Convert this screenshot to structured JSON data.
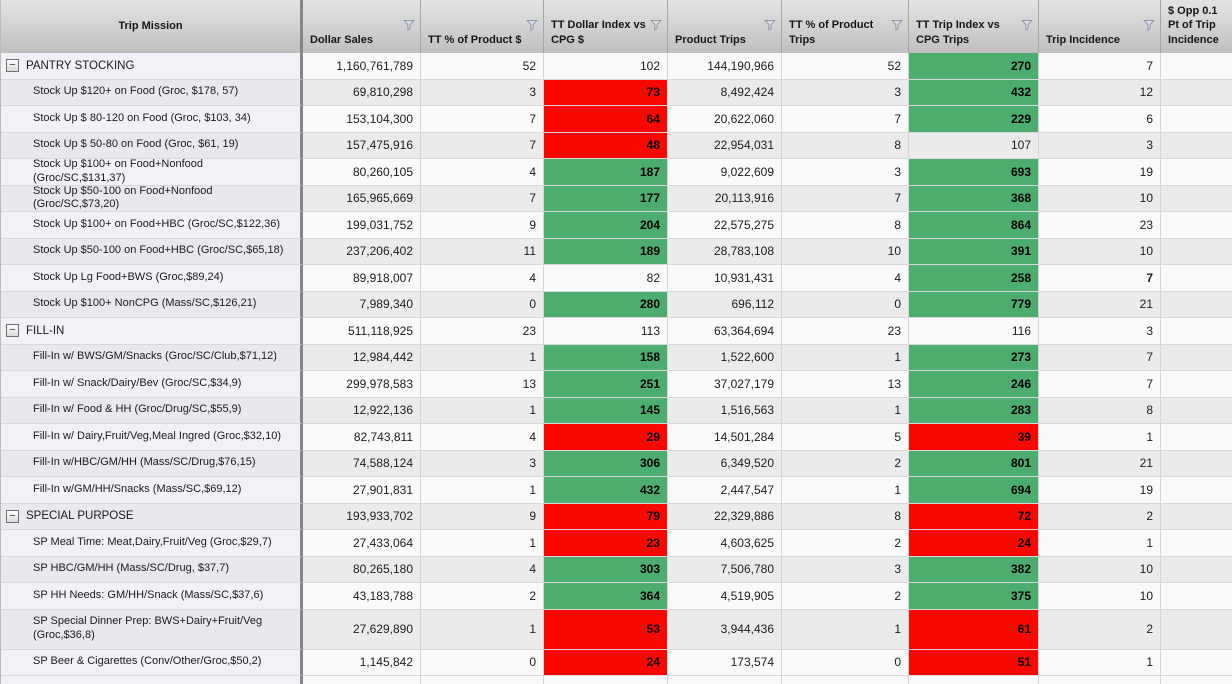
{
  "table": {
    "colors": {
      "positive_fill": "#4CAD6E",
      "negative_fill": "#FA0702",
      "header_bg": "#cccccc",
      "frozen_col_bg": "#eef0f6",
      "stripe_gray": "#ebebeb"
    },
    "columns": [
      {
        "key": "label",
        "label": "Trip Mission",
        "filter": false
      },
      {
        "key": "dollar-sales",
        "label": "Dollar Sales",
        "filter": true
      },
      {
        "key": "pct-dollars",
        "label": "TT % of Product $",
        "filter": true
      },
      {
        "key": "dollar-index",
        "label": "TT Dollar Index vs CPG $",
        "filter": true
      },
      {
        "key": "product-trips",
        "label": "Product Trips",
        "filter": true
      },
      {
        "key": "pct-trips",
        "label": "TT % of Product Trips",
        "filter": true
      },
      {
        "key": "trip-index",
        "label": "TT Trip Index vs CPG Trips",
        "filter": true
      },
      {
        "key": "trip-incidence",
        "label": "Trip Incidence",
        "filter": true
      },
      {
        "key": "opp",
        "label": "$ Opp 0.1 Pt of Trip Incidence",
        "filter": false
      }
    ],
    "expander_glyph": "−",
    "rows": [
      {
        "label": "PANTRY STOCKING",
        "group": true,
        "dollar_sales": "1,160,761,789",
        "pct_dollars": "52",
        "dollar_index": "102",
        "dollar_index_color": "none",
        "product_trips": "144,190,966",
        "pct_trips": "52",
        "trip_index": "270",
        "trip_index_color": "green",
        "trip_incidence": "7",
        "trip_incidence_bold": false,
        "opp": ""
      },
      {
        "label": "Stock Up $120+ on Food (Groc, $178, 57)",
        "group": false,
        "dollar_sales": "69,810,298",
        "pct_dollars": "3",
        "dollar_index": "73",
        "dollar_index_color": "red",
        "product_trips": "8,492,424",
        "pct_trips": "3",
        "trip_index": "432",
        "trip_index_color": "green",
        "trip_incidence": "12",
        "trip_incidence_bold": false,
        "opp": ""
      },
      {
        "label": "Stock Up $ 80-120 on Food (Groc, $103, 34)",
        "group": false,
        "dollar_sales": "153,104,300",
        "pct_dollars": "7",
        "dollar_index": "64",
        "dollar_index_color": "red",
        "product_trips": "20,622,060",
        "pct_trips": "7",
        "trip_index": "229",
        "trip_index_color": "green",
        "trip_incidence": "6",
        "trip_incidence_bold": false,
        "opp": ""
      },
      {
        "label": "Stock Up $ 50-80 on Food (Groc, $61, 19)",
        "group": false,
        "dollar_sales": "157,475,916",
        "pct_dollars": "7",
        "dollar_index": "48",
        "dollar_index_color": "red",
        "product_trips": "22,954,031",
        "pct_trips": "8",
        "trip_index": "107",
        "trip_index_color": "none",
        "trip_incidence": "3",
        "trip_incidence_bold": false,
        "opp": ""
      },
      {
        "label": "Stock Up $100+ on Food+Nonfood (Groc/SC,$131,37)",
        "group": false,
        "dollar_sales": "80,260,105",
        "pct_dollars": "4",
        "dollar_index": "187",
        "dollar_index_color": "green",
        "product_trips": "9,022,609",
        "pct_trips": "3",
        "trip_index": "693",
        "trip_index_color": "green",
        "trip_incidence": "19",
        "trip_incidence_bold": false,
        "opp": ""
      },
      {
        "label": "Stock Up $50-100 on Food+Nonfood (Groc/SC,$73,20)",
        "group": false,
        "dollar_sales": "165,965,669",
        "pct_dollars": "7",
        "dollar_index": "177",
        "dollar_index_color": "green",
        "product_trips": "20,113,916",
        "pct_trips": "7",
        "trip_index": "368",
        "trip_index_color": "green",
        "trip_incidence": "10",
        "trip_incidence_bold": false,
        "opp": ""
      },
      {
        "label": "Stock Up $100+ on Food+HBC (Groc/SC,$122,36)",
        "group": false,
        "dollar_sales": "199,031,752",
        "pct_dollars": "9",
        "dollar_index": "204",
        "dollar_index_color": "green",
        "product_trips": "22,575,275",
        "pct_trips": "8",
        "trip_index": "864",
        "trip_index_color": "green",
        "trip_incidence": "23",
        "trip_incidence_bold": false,
        "opp": ""
      },
      {
        "label": "Stock Up $50-100 on Food+HBC (Groc/SC,$65,18)",
        "group": false,
        "dollar_sales": "237,206,402",
        "pct_dollars": "11",
        "dollar_index": "189",
        "dollar_index_color": "green",
        "product_trips": "28,783,108",
        "pct_trips": "10",
        "trip_index": "391",
        "trip_index_color": "green",
        "trip_incidence": "10",
        "trip_incidence_bold": false,
        "opp": ""
      },
      {
        "label": "Stock Up Lg Food+BWS (Groc,$89,24)",
        "group": false,
        "dollar_sales": "89,918,007",
        "pct_dollars": "4",
        "dollar_index": "82",
        "dollar_index_color": "none",
        "product_trips": "10,931,431",
        "pct_trips": "4",
        "trip_index": "258",
        "trip_index_color": "green",
        "trip_incidence": "7",
        "trip_incidence_bold": true,
        "opp": ""
      },
      {
        "label": "Stock Up $100+ NonCPG (Mass/SC,$126,21)",
        "group": false,
        "dollar_sales": "7,989,340",
        "pct_dollars": "0",
        "dollar_index": "280",
        "dollar_index_color": "green",
        "product_trips": "696,112",
        "pct_trips": "0",
        "trip_index": "779",
        "trip_index_color": "green",
        "trip_incidence": "21",
        "trip_incidence_bold": false,
        "opp": ""
      },
      {
        "label": "FILL-IN",
        "group": true,
        "dollar_sales": "511,118,925",
        "pct_dollars": "23",
        "dollar_index": "113",
        "dollar_index_color": "none",
        "product_trips": "63,364,694",
        "pct_trips": "23",
        "trip_index": "116",
        "trip_index_color": "none",
        "trip_incidence": "3",
        "trip_incidence_bold": false,
        "opp": ""
      },
      {
        "label": "Fill-In w/ BWS/GM/Snacks (Groc/SC/Club,$71,12)",
        "group": false,
        "dollar_sales": "12,984,442",
        "pct_dollars": "1",
        "dollar_index": "158",
        "dollar_index_color": "green",
        "product_trips": "1,522,600",
        "pct_trips": "1",
        "trip_index": "273",
        "trip_index_color": "green",
        "trip_incidence": "7",
        "trip_incidence_bold": false,
        "opp": ""
      },
      {
        "label": "Fill-In w/ Snack/Dairy/Bev (Groc/SC,$34,9)",
        "group": false,
        "dollar_sales": "299,978,583",
        "pct_dollars": "13",
        "dollar_index": "251",
        "dollar_index_color": "green",
        "product_trips": "37,027,179",
        "pct_trips": "13",
        "trip_index": "246",
        "trip_index_color": "green",
        "trip_incidence": "7",
        "trip_incidence_bold": false,
        "opp": ""
      },
      {
        "label": "Fill-In w/ Food & HH (Groc/Drug/SC,$55,9)",
        "group": false,
        "dollar_sales": "12,922,136",
        "pct_dollars": "1",
        "dollar_index": "145",
        "dollar_index_color": "green",
        "product_trips": "1,516,563",
        "pct_trips": "1",
        "trip_index": "283",
        "trip_index_color": "green",
        "trip_incidence": "8",
        "trip_incidence_bold": false,
        "opp": ""
      },
      {
        "label": "Fill-In w/ Dairy,Fruit/Veg,Meal Ingred (Groc,$32,10)",
        "group": false,
        "dollar_sales": "82,743,811",
        "pct_dollars": "4",
        "dollar_index": "29",
        "dollar_index_color": "red",
        "product_trips": "14,501,284",
        "pct_trips": "5",
        "trip_index": "39",
        "trip_index_color": "red",
        "trip_incidence": "1",
        "trip_incidence_bold": false,
        "opp": ""
      },
      {
        "label": "Fill-In w/HBC/GM/HH (Mass/SC/Drug,$76,15)",
        "group": false,
        "dollar_sales": "74,588,124",
        "pct_dollars": "3",
        "dollar_index": "306",
        "dollar_index_color": "green",
        "product_trips": "6,349,520",
        "pct_trips": "2",
        "trip_index": "801",
        "trip_index_color": "green",
        "trip_incidence": "21",
        "trip_incidence_bold": false,
        "opp": ""
      },
      {
        "label": "Fill-In w/GM/HH/Snacks (Mass/SC,$69,12)",
        "group": false,
        "dollar_sales": "27,901,831",
        "pct_dollars": "1",
        "dollar_index": "432",
        "dollar_index_color": "green",
        "product_trips": "2,447,547",
        "pct_trips": "1",
        "trip_index": "694",
        "trip_index_color": "green",
        "trip_incidence": "19",
        "trip_incidence_bold": false,
        "opp": ""
      },
      {
        "label": "SPECIAL PURPOSE",
        "group": true,
        "dollar_sales": "193,933,702",
        "pct_dollars": "9",
        "dollar_index": "79",
        "dollar_index_color": "red",
        "product_trips": "22,329,886",
        "pct_trips": "8",
        "trip_index": "72",
        "trip_index_color": "red",
        "trip_incidence": "2",
        "trip_incidence_bold": false,
        "opp": ""
      },
      {
        "label": "SP Meal Time: Meat,Dairy,Fruit/Veg (Groc,$29,7)",
        "group": false,
        "dollar_sales": "27,433,064",
        "pct_dollars": "1",
        "dollar_index": "23",
        "dollar_index_color": "red",
        "product_trips": "4,603,625",
        "pct_trips": "2",
        "trip_index": "24",
        "trip_index_color": "red",
        "trip_incidence": "1",
        "trip_incidence_bold": false,
        "opp": ""
      },
      {
        "label": "SP HBC/GM/HH (Mass/SC/Drug, $37,7)",
        "group": false,
        "dollar_sales": "80,265,180",
        "pct_dollars": "4",
        "dollar_index": "303",
        "dollar_index_color": "green",
        "product_trips": "7,506,780",
        "pct_trips": "3",
        "trip_index": "382",
        "trip_index_color": "green",
        "trip_incidence": "10",
        "trip_incidence_bold": false,
        "opp": ""
      },
      {
        "label": "SP HH Needs: GM/HH/Snack (Mass/SC,$37,6)",
        "group": false,
        "dollar_sales": "43,183,788",
        "pct_dollars": "2",
        "dollar_index": "364",
        "dollar_index_color": "green",
        "product_trips": "4,519,905",
        "pct_trips": "2",
        "trip_index": "375",
        "trip_index_color": "green",
        "trip_incidence": "10",
        "trip_incidence_bold": false,
        "opp": ""
      },
      {
        "label": "SP Special Dinner Prep: BWS+Dairy+Fruit/Veg (Groc,$36,8)",
        "group": false,
        "tall": true,
        "dollar_sales": "27,629,890",
        "pct_dollars": "1",
        "dollar_index": "53",
        "dollar_index_color": "red",
        "product_trips": "3,944,436",
        "pct_trips": "1",
        "trip_index": "61",
        "trip_index_color": "red",
        "trip_incidence": "2",
        "trip_incidence_bold": false,
        "opp": ""
      },
      {
        "label": "SP Beer & Cigarettes (Conv/Other/Groc,$50,2)",
        "group": false,
        "dollar_sales": "1,145,842",
        "pct_dollars": "0",
        "dollar_index": "24",
        "dollar_index_color": "red",
        "product_trips": "173,574",
        "pct_trips": "0",
        "trip_index": "51",
        "trip_index_color": "red",
        "trip_incidence": "1",
        "trip_incidence_bold": false,
        "opp": ""
      }
    ]
  }
}
